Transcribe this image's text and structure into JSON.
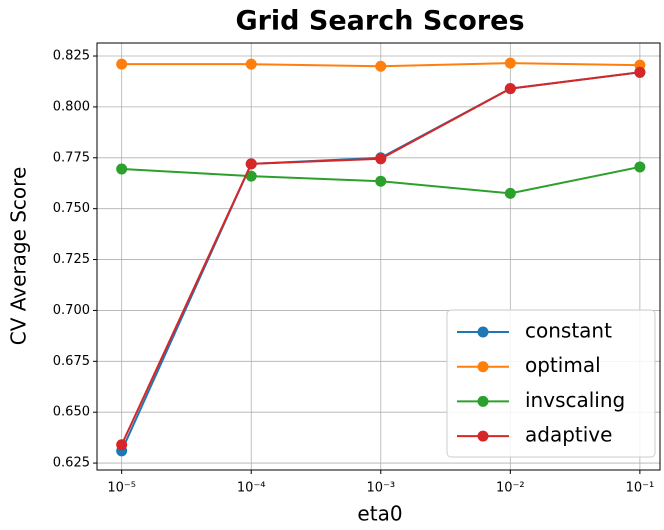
{
  "chart_data": {
    "type": "line",
    "title": "Grid Search Scores",
    "xlabel": "eta0",
    "ylabel": "CV Average Score",
    "x": [
      1e-05,
      0.0001,
      0.001,
      0.01,
      0.1
    ],
    "series": [
      {
        "name": "constant",
        "color": "#1f77b4",
        "values": [
          0.631,
          0.772,
          0.775,
          0.809,
          0.817
        ]
      },
      {
        "name": "optimal",
        "color": "#ff7f0e",
        "values": [
          0.821,
          0.821,
          0.82,
          0.8215,
          0.8205
        ]
      },
      {
        "name": "invscaling",
        "color": "#2ca02c",
        "values": [
          0.7695,
          0.766,
          0.7635,
          0.7575,
          0.7705
        ]
      },
      {
        "name": "adaptive",
        "color": "#d62728",
        "values": [
          0.634,
          0.772,
          0.7745,
          0.809,
          0.817
        ]
      }
    ],
    "xscale": "log",
    "xlim": [
      6.45e-06,
      0.143
    ],
    "xticks": [
      {
        "value": 1e-05,
        "label": "10⁻⁵"
      },
      {
        "value": 0.0001,
        "label": "10⁻⁴"
      },
      {
        "value": 0.001,
        "label": "10⁻³"
      },
      {
        "value": 0.01,
        "label": "10⁻²"
      },
      {
        "value": 0.1,
        "label": "10⁻¹"
      }
    ],
    "ylim": [
      0.6216,
      0.8314
    ],
    "yticks": [
      0.625,
      {
        "value": 0.65,
        "label": "0.650"
      },
      0.675,
      {
        "value": 0.7,
        "label": "0.700"
      },
      0.725,
      {
        "value": 0.75,
        "label": "0.750"
      },
      0.775,
      {
        "value": 0.8,
        "label": "0.800"
      },
      0.825
    ],
    "grid": true,
    "legend": "lower right"
  }
}
